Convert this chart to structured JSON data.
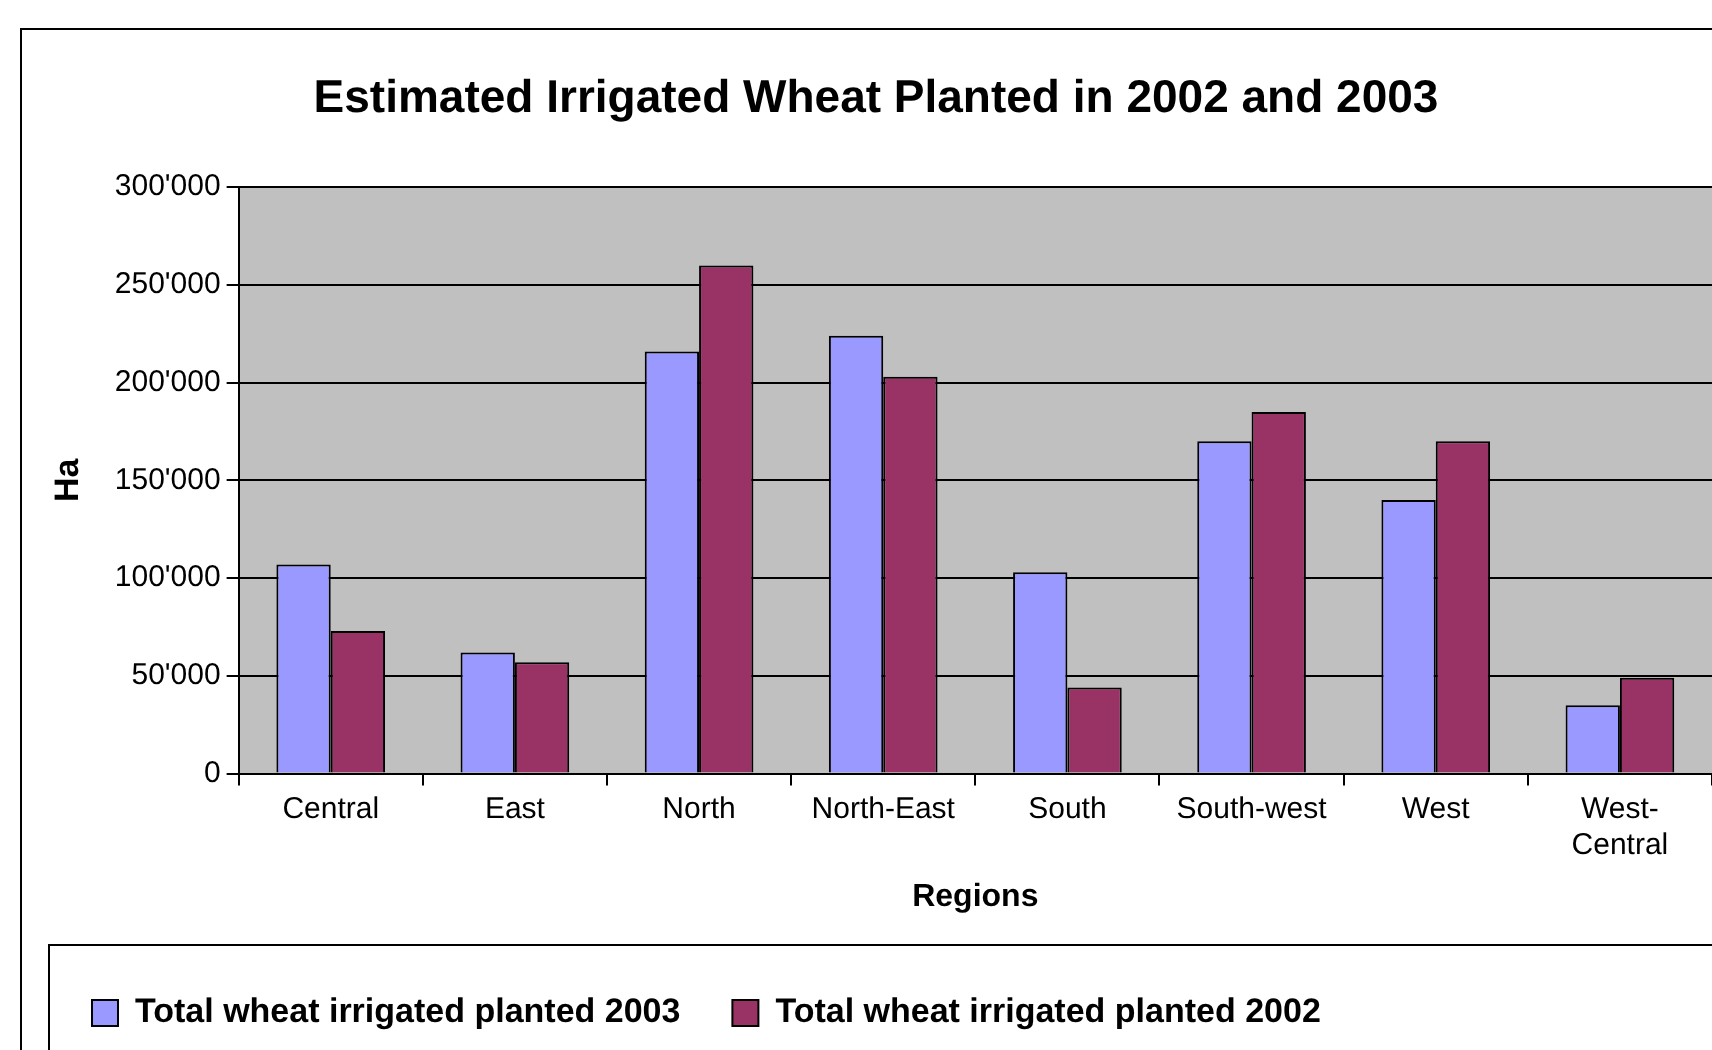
{
  "chart_data": {
    "type": "bar",
    "title": "Estimated Irrigated Wheat Planted in 2002 and 2003",
    "xlabel": "Regions",
    "ylabel": "Ha",
    "categories": [
      "Central",
      "East",
      "North",
      "North-East",
      "South",
      "South-west",
      "West",
      "West-Central"
    ],
    "series": [
      {
        "name": "Total wheat irrigated planted 2003",
        "color": "#9999ff",
        "values": [
          107000,
          62000,
          216000,
          224000,
          103000,
          170000,
          140000,
          35000
        ]
      },
      {
        "name": "Total wheat irrigated planted 2002",
        "color": "#993366",
        "values": [
          73000,
          57000,
          260000,
          203000,
          44000,
          185000,
          170000,
          49000
        ]
      }
    ],
    "ylim": [
      0,
      300000
    ],
    "yticks": [
      {
        "value": 0,
        "label": "0"
      },
      {
        "value": 50000,
        "label": "50'000"
      },
      {
        "value": 100000,
        "label": "100'000"
      },
      {
        "value": 150000,
        "label": "150'000"
      },
      {
        "value": 200000,
        "label": "200'000"
      },
      {
        "value": 250000,
        "label": "250'000"
      },
      {
        "value": 300000,
        "label": "300'000"
      }
    ],
    "grid": "y",
    "legend": "bottom"
  }
}
